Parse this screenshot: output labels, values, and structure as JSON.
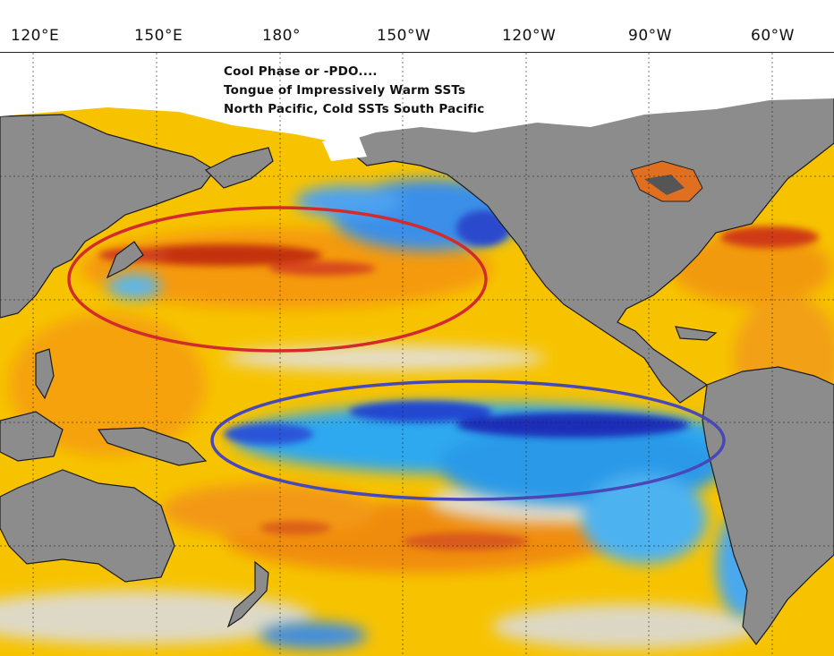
{
  "longitude_labels": [
    "120°E",
    "150°E",
    "180°",
    "150°W",
    "120°W",
    "90°W",
    "60°W"
  ],
  "annotation": {
    "line1": "Cool Phase or -PDO....",
    "line2": "Tongue of Impressively Warm SSTs",
    "line3": "North Pacific, Cold SSTs South Pacific"
  },
  "colors": {
    "land": "#8c8c8c",
    "ice": "#ffffff",
    "warm_anomaly": "#f5a000",
    "hot_anomaly": "#d8401a",
    "neutral": "#dedede",
    "cool_anomaly": "#3fa6f0",
    "cold_anomaly": "#1f3fd0",
    "north_ellipse": "#d32b2b",
    "south_ellipse": "#4848b8"
  },
  "map_layers": {
    "land": "land-masses",
    "ocean": "sea-surface-temperature-anomaly",
    "highlight_regions": [
      "north-pacific-warm-tongue",
      "eastern-tropical-pacific-cold-tongue"
    ]
  }
}
